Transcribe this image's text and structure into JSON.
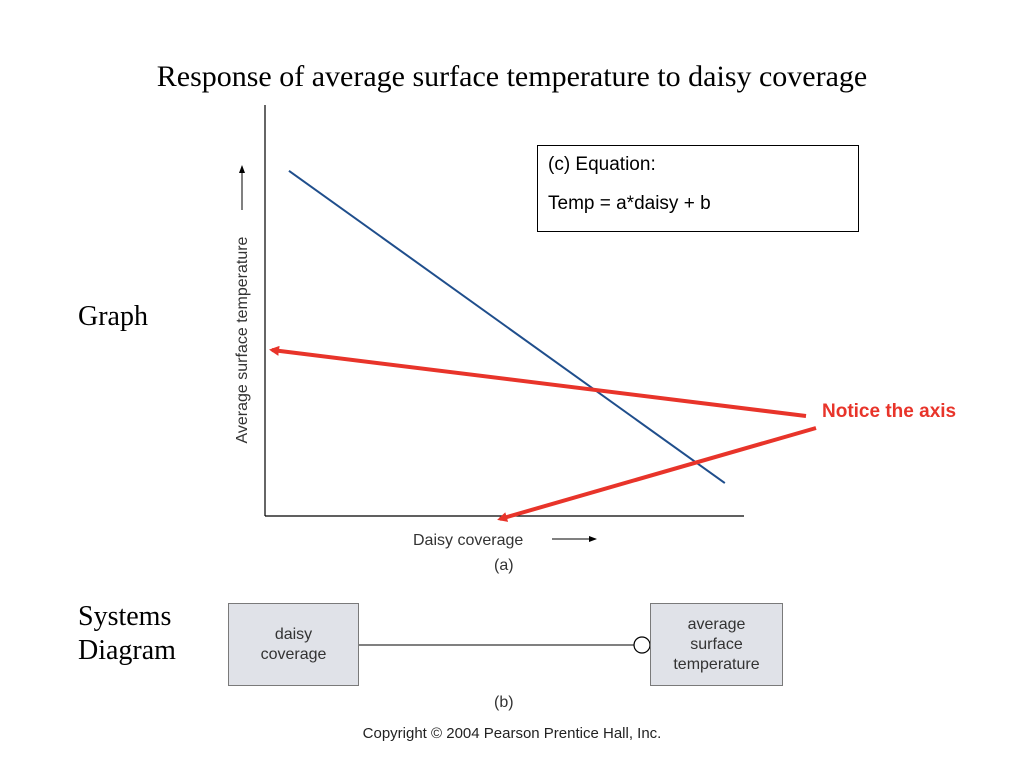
{
  "title": "Response of average surface temperature to daisy coverage",
  "side_labels": {
    "graph": "Graph",
    "systems_line1": "Systems",
    "systems_line2": "Diagram"
  },
  "equation": {
    "line1": "(c) Equation:",
    "line2": "Temp = a*daisy + b"
  },
  "annotation": {
    "text": "Notice the axis",
    "color": "#e8342a"
  },
  "systems_diagram": {
    "input_line1": "daisy",
    "input_line2": "coverage",
    "output_line1": "average",
    "output_line2": "surface",
    "output_line3": "temperature",
    "link_type": "negative-circle"
  },
  "captions": {
    "a": "(a)",
    "b": "(b)"
  },
  "copyright": "Copyright © 2004 Pearson Prentice Hall, Inc.",
  "chart_data": {
    "type": "line",
    "title": "",
    "xlabel": "Daisy coverage",
    "ylabel": "Average surface temperature",
    "xlim": [
      0,
      1
    ],
    "ylim": [
      0,
      1
    ],
    "grid": false,
    "series": [
      {
        "x": [
          0.05,
          0.96
        ],
        "y": [
          0.84,
          0.08
        ],
        "color": "#1f4e8c"
      }
    ]
  }
}
